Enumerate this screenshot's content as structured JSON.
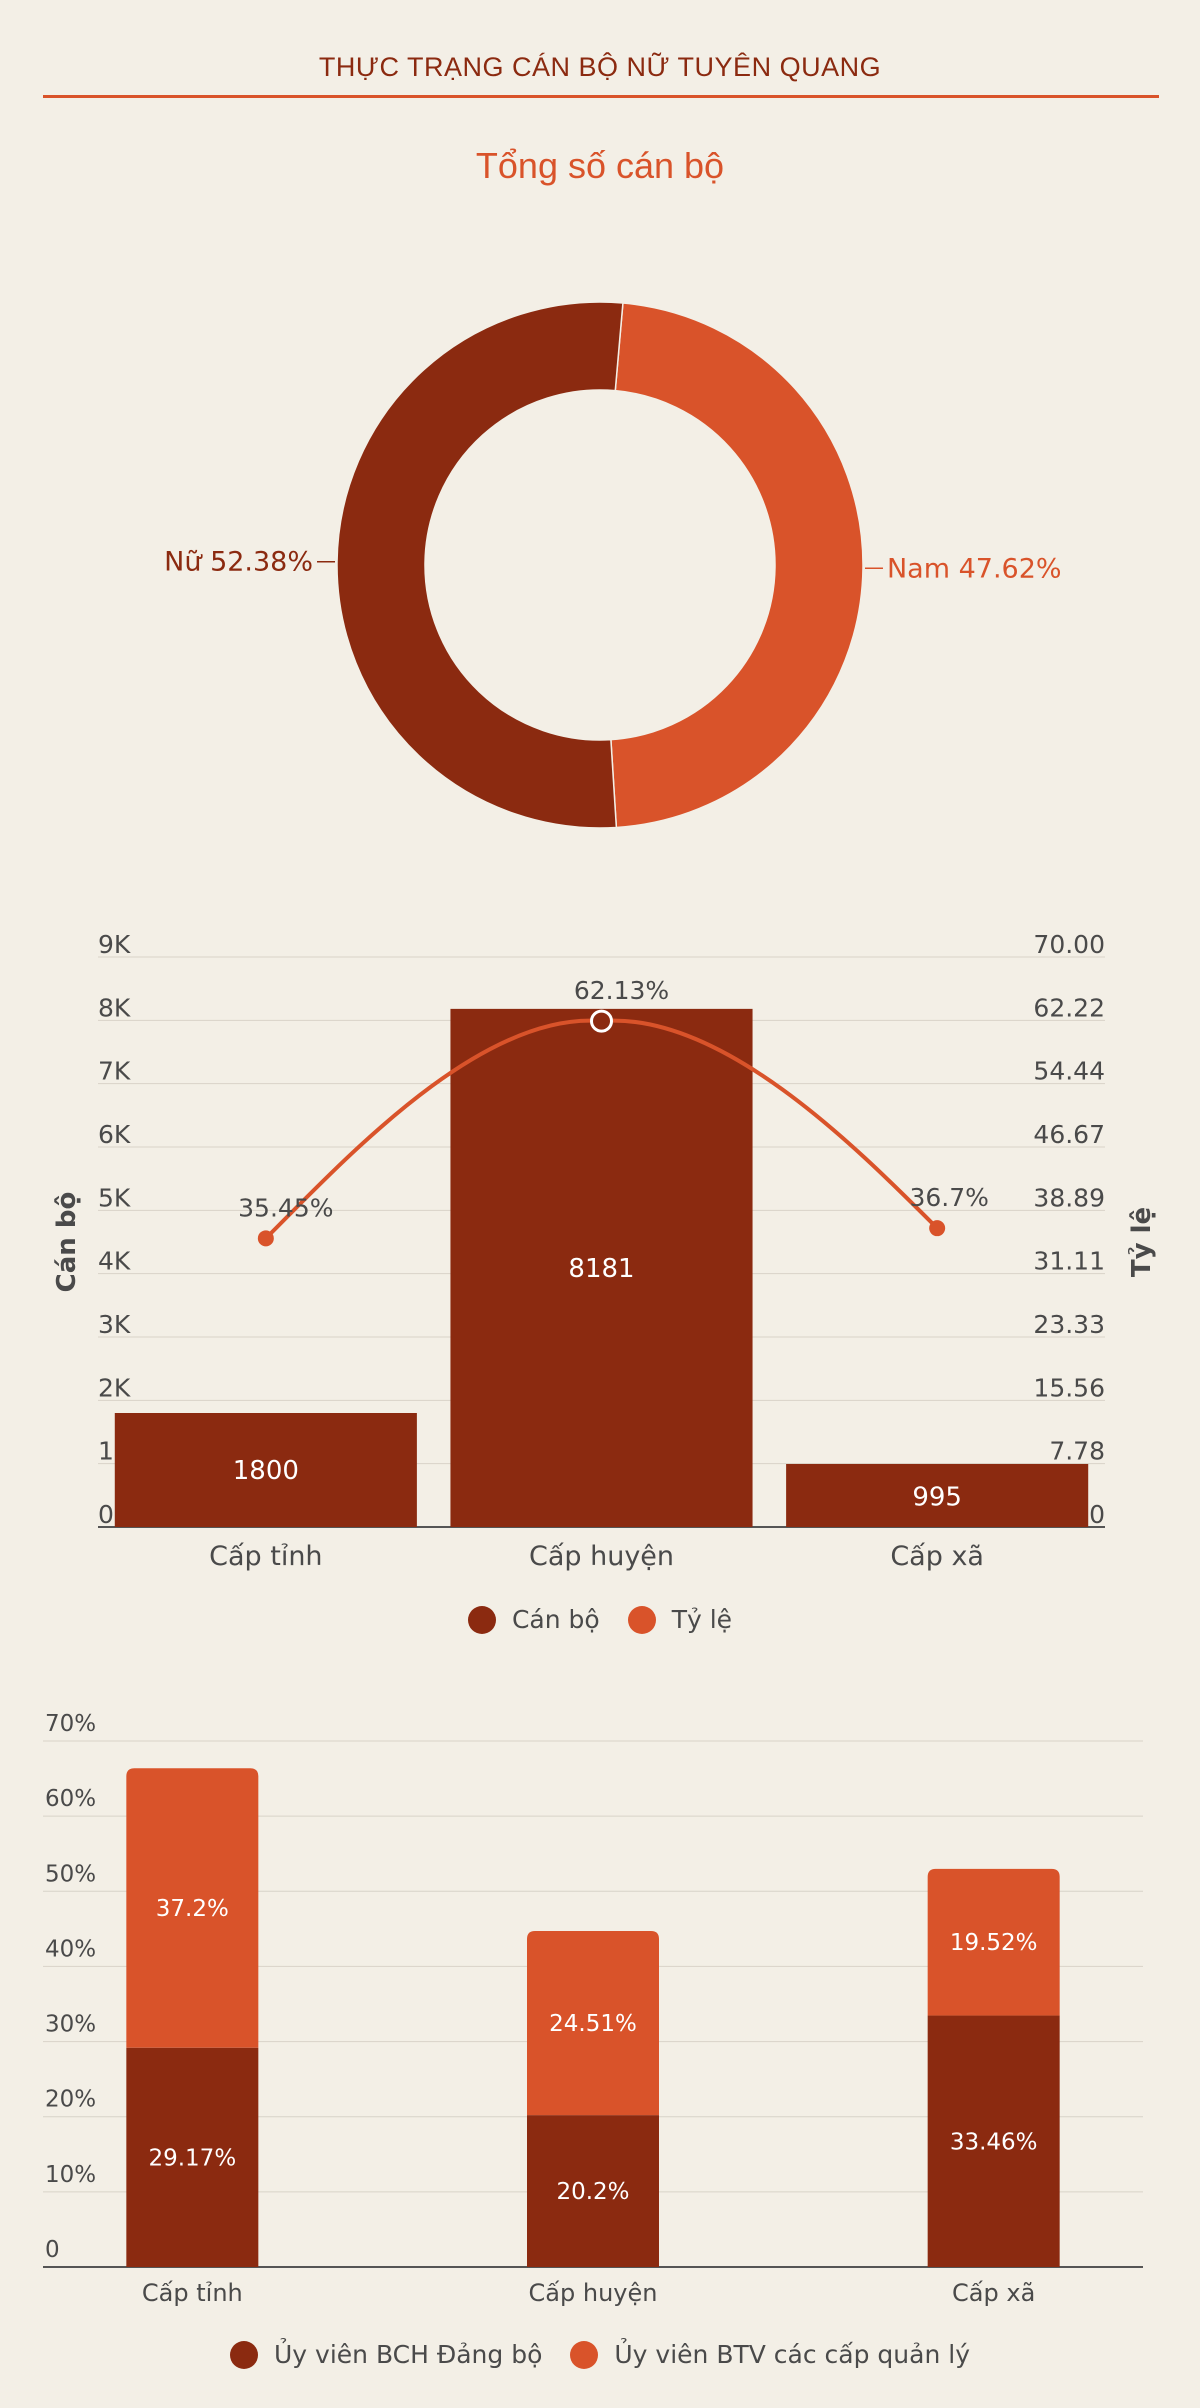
{
  "header": {
    "title": "THỰC TRẠNG CÁN BỘ NỮ TUYÊN QUANG"
  },
  "colors": {
    "dark": "#8b2a10",
    "orange": "#d9532a",
    "background": "#f3efe6",
    "grid": "#d8d3c8"
  },
  "chart_data": [
    {
      "type": "pie",
      "title": "Tổng số cán bộ",
      "slices": [
        {
          "label": "Nữ 52.38%",
          "name": "Nữ",
          "value": 52.38
        },
        {
          "label": "Nam 47.62%",
          "name": "Nam",
          "value": 47.62
        }
      ]
    },
    {
      "type": "bar",
      "categories": [
        "Cấp tỉnh",
        "Cấp huyện",
        "Cấp xã"
      ],
      "series": [
        {
          "name": "Cán bộ",
          "type": "bar",
          "values": [
            1800,
            8181,
            995
          ],
          "labels": [
            "1800",
            "8181",
            "995"
          ]
        },
        {
          "name": "Tỷ lệ",
          "type": "line",
          "values": [
            35.45,
            62.13,
            36.7
          ],
          "labels": [
            "35.45%",
            "62.13%",
            "36.7%"
          ]
        }
      ],
      "ylabel": "Cán bộ",
      "y2label": "Tỷ lệ",
      "ylim": [
        0,
        9000
      ],
      "y2lim": [
        0,
        70
      ],
      "yticks": [
        "0",
        "1K",
        "2K",
        "3K",
        "4K",
        "5K",
        "6K",
        "7K",
        "8K",
        "9K"
      ],
      "y2ticks": [
        "0",
        "7.78",
        "15.56",
        "23.33",
        "31.11",
        "38.89",
        "46.67",
        "54.44",
        "62.22",
        "70.00"
      ],
      "legend": "bottom"
    },
    {
      "type": "bar",
      "stacked": true,
      "categories": [
        "Cấp tỉnh",
        "Cấp huyện",
        "Cấp xã"
      ],
      "series": [
        {
          "name": "Ủy viên BCH Đảng bộ",
          "values": [
            29.17,
            20.2,
            33.46
          ],
          "labels": [
            "29.17%",
            "20.2%",
            "33.46%"
          ]
        },
        {
          "name": "Ủy viên BTV các cấp quản lý",
          "values": [
            37.2,
            24.51,
            19.52
          ],
          "labels": [
            "37.2%",
            "24.51%",
            "19.52%"
          ]
        }
      ],
      "ylim": [
        0,
        70
      ],
      "yticks": [
        "0",
        "10%",
        "20%",
        "30%",
        "40%",
        "50%",
        "60%",
        "70%"
      ],
      "legend": "bottom"
    }
  ]
}
